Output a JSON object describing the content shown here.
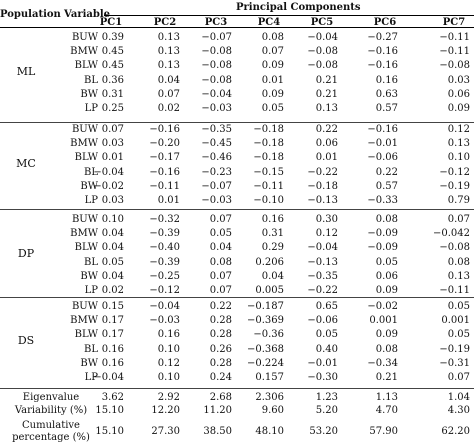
{
  "table": {
    "header": {
      "population": "Population",
      "variable": "Variable",
      "principal_components": "Principal Components",
      "columns": [
        "PC1",
        "PC2",
        "PC3",
        "PC4",
        "PC5",
        "PC6",
        "PC7"
      ]
    },
    "groups": [
      {
        "population": "ML",
        "rows": [
          {
            "variable": "BUW",
            "values": [
              "0.39",
              "0.13",
              "−0.07",
              "0.08",
              "−0.04",
              "−0.27",
              "−0.11"
            ]
          },
          {
            "variable": "BMW",
            "values": [
              "0.45",
              "0.13",
              "−0.08",
              "0.07",
              "−0.08",
              "−0.16",
              "−0.11"
            ]
          },
          {
            "variable": "BLW",
            "values": [
              "0.45",
              "0.13",
              "−0.08",
              "0.09",
              "−0.08",
              "−0.16",
              "−0.08"
            ]
          },
          {
            "variable": "BL",
            "values": [
              "0.36",
              "0.04",
              "−0.08",
              "0.01",
              "0.21",
              "0.16",
              "0.03"
            ]
          },
          {
            "variable": "BW",
            "values": [
              "0.31",
              "0.07",
              "−0.04",
              "0.09",
              "0.21",
              "0.63",
              "0.06"
            ]
          },
          {
            "variable": "LP",
            "values": [
              "0.25",
              "0.02",
              "−0.03",
              "0.05",
              "0.13",
              "0.57",
              "0.09"
            ]
          }
        ]
      },
      {
        "population": "MC",
        "rows": [
          {
            "variable": "BUW",
            "values": [
              "0.07",
              "−0.16",
              "−0.35",
              "−0.18",
              "0.22",
              "−0.16",
              "0.12"
            ]
          },
          {
            "variable": "BMW",
            "values": [
              "0.03",
              "−0.20",
              "−0.45",
              "−0.18",
              "0.06",
              "−0.01",
              "0.13"
            ]
          },
          {
            "variable": "BLW",
            "values": [
              "0.01",
              "−0.17",
              "−0.46",
              "−0.18",
              "0.01",
              "−0.06",
              "0.10"
            ]
          },
          {
            "variable": "BL",
            "values": [
              "−0.04",
              "−0.16",
              "−0.23",
              "−0.15",
              "−0.22",
              "0.22",
              "−0.12"
            ]
          },
          {
            "variable": "BW",
            "values": [
              "−0.02",
              "−0.11",
              "−0.07",
              "−0.11",
              "−0.18",
              "0.57",
              "−0.19"
            ]
          },
          {
            "variable": "LP",
            "values": [
              "0.03",
              "0.01",
              "−0.03",
              "−0.10",
              "−0.13",
              "−0.33",
              "0.79"
            ]
          }
        ]
      },
      {
        "population": "DP",
        "rows": [
          {
            "variable": "BUW",
            "values": [
              "0.10",
              "−0.32",
              "0.07",
              "0.16",
              "0.30",
              "0.08",
              "0.07"
            ]
          },
          {
            "variable": "BMW",
            "values": [
              "0.04",
              "−0.39",
              "0.05",
              "0.31",
              "0.12",
              "−0.09",
              "−0.042"
            ]
          },
          {
            "variable": "BLW",
            "values": [
              "0.04",
              "−0.40",
              "0.04",
              "0.29",
              "−0.04",
              "−0.09",
              "−0.08"
            ]
          },
          {
            "variable": "BL",
            "values": [
              "0.05",
              "−0.39",
              "0.08",
              "0.206",
              "−0.13",
              "0.05",
              "0.08"
            ]
          },
          {
            "variable": "BW",
            "values": [
              "0.04",
              "−0.25",
              "0.07",
              "0.04",
              "−0.35",
              "0.06",
              "0.13"
            ]
          },
          {
            "variable": "LP",
            "values": [
              "0.02",
              "−0.12",
              "0.07",
              "0.005",
              "−0.22",
              "0.09",
              "−0.11"
            ]
          }
        ]
      },
      {
        "population": "DS",
        "rows": [
          {
            "variable": "BUW",
            "values": [
              "0.15",
              "−0.04",
              "0.22",
              "−0.187",
              "0.65",
              "−0.02",
              "0.05"
            ]
          },
          {
            "variable": "BMW",
            "values": [
              "0.17",
              "−0.03",
              "0.28",
              "−0.369",
              "−0.06",
              "0.001",
              "0.001"
            ]
          },
          {
            "variable": "BLW",
            "values": [
              "0.17",
              "0.16",
              "0.28",
              "−0.36",
              "0.05",
              "0.09",
              "0.05"
            ]
          },
          {
            "variable": "BL",
            "values": [
              "0.16",
              "0.10",
              "0.26",
              "−0.368",
              "0.40",
              "0.08",
              "−0.19"
            ]
          },
          {
            "variable": "BW",
            "values": [
              "0.16",
              "0.12",
              "0.28",
              "−0.224",
              "−0.01",
              "−0.34",
              "−0.31"
            ]
          },
          {
            "variable": "LP",
            "values": [
              "−0.04",
              "0.10",
              "0.24",
              "0.157",
              "−0.30",
              "0.21",
              "0.07"
            ]
          }
        ]
      }
    ],
    "footer": [
      {
        "label": "Eigenvalue",
        "values": [
          "3.62",
          "2.92",
          "2.68",
          "2.306",
          "1.23",
          "1.13",
          "1.04"
        ]
      },
      {
        "label": "Variability (%)",
        "values": [
          "15.10",
          "12.20",
          "11.20",
          "9.60",
          "5.20",
          "4.70",
          "4.30"
        ]
      },
      {
        "label": "Cumulative percentage (%)",
        "label_line1": "Cumulative",
        "label_line2": "percentage (%)",
        "values": [
          "15.10",
          "27.30",
          "38.50",
          "48.10",
          "53.20",
          "57.90",
          "62.20"
        ]
      }
    ]
  }
}
